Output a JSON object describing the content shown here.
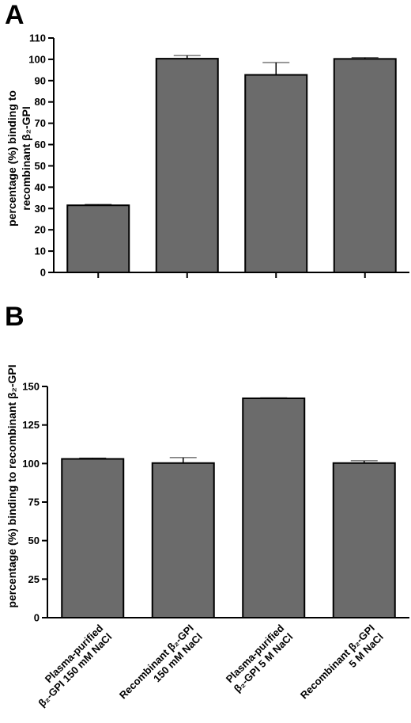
{
  "chart_data": [
    {
      "panel": "A",
      "type": "bar",
      "ylabel_lines": [
        "percentage (%) binding to",
        "recombinant β₂-GPI"
      ],
      "ylim": [
        0,
        110
      ],
      "yticks": [
        0,
        10,
        20,
        30,
        40,
        50,
        60,
        70,
        80,
        90,
        100,
        110
      ],
      "categories": [
        "",
        "",
        "",
        ""
      ],
      "values": [
        31.5,
        100.3,
        92.7,
        100.2
      ],
      "errors": [
        0.4,
        1.5,
        5.8,
        0.6
      ],
      "bar_color": "#6b6b6b",
      "grid": false
    },
    {
      "panel": "B",
      "type": "bar",
      "ylabel": "percentage (%) binding to recombinant β₂-GPI",
      "ylim": [
        0,
        150
      ],
      "yticks": [
        0,
        25,
        50,
        75,
        100,
        125,
        150
      ],
      "categories": [
        "Plasma-purified β₂-GPI 150 mM NaCl",
        "Recombinant β₂-GPI 150 mM NaCl",
        "Plasma-purified β₂-GPI 5 M NaCl",
        "Recombinant β₂-GPI 5 M NaCl"
      ],
      "category_lines": [
        [
          "Plasma-purified",
          "β₂-GPI 150 mM NaCl"
        ],
        [
          "Recombinant β₂-GPI",
          "150 mM NaCl"
        ],
        [
          "Plasma-purified",
          "β₂-GPI 5 M NaCl"
        ],
        [
          "Recombinant β₂-GPI",
          "5 M NaCl"
        ]
      ],
      "values": [
        103,
        100.3,
        142.3,
        100.3
      ],
      "errors": [
        0.6,
        3.5,
        0.4,
        1.5
      ],
      "bar_color": "#6b6b6b",
      "grid": false
    }
  ]
}
